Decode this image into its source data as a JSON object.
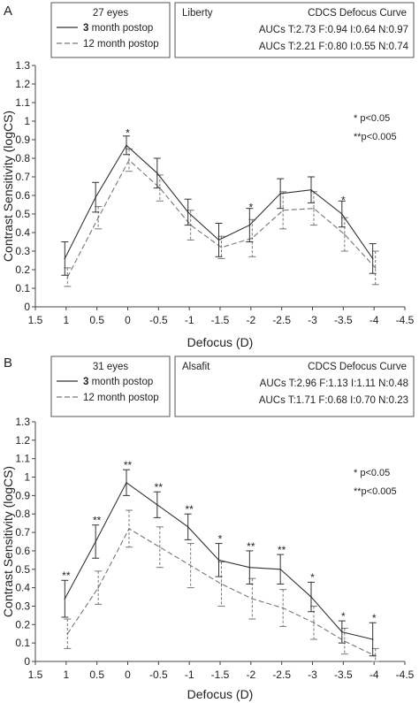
{
  "chart_data": [
    {
      "type": "line",
      "panel_label": "A",
      "xlabel": "Defocus (D)",
      "ylabel": "Contrast Sensitivity (logCS)",
      "x_ticks": [
        "1.5",
        "1",
        "0.5",
        "0",
        "-0.5",
        "-1",
        "-1.5",
        "-2",
        "-2.5",
        "-3",
        "-3.5",
        "-4",
        "-4.5"
      ],
      "x_tick_values": [
        1.5,
        1,
        0.5,
        0,
        -0.5,
        -1,
        -1.5,
        -2,
        -2.5,
        -3,
        -3.5,
        -4,
        -4.5
      ],
      "xlim": [
        1.5,
        -4.5
      ],
      "ylim": [
        0,
        1.3
      ],
      "y_ticks": [
        "0",
        "0.1",
        "0.2",
        "0.3",
        "0.4",
        "0.5",
        "0.6",
        "0.7",
        "0.8",
        "0.9",
        "1",
        "1.1",
        "1.2",
        "1.3"
      ],
      "grid": false,
      "legend_placement": "top-left",
      "legend": {
        "title": "27 eyes",
        "entries": [
          {
            "series_index": 0,
            "label_bold": "3",
            "label_rest": " month postop"
          },
          {
            "series_index": 1,
            "label_bold": "",
            "label_rest": "12 month postop"
          }
        ]
      },
      "info_box": {
        "lens": "Liberty",
        "curve_title": "CDCS Defocus Curve",
        "auc_lines": [
          "AUCs T:2.73 F:0.94 I:0.64 N:0.97",
          "AUCs T:2.21 F:0.80 I:0.55 N:0.74"
        ]
      },
      "significance_notes": [
        "* p<0.05",
        "**p<0.005"
      ],
      "x": [
        1,
        0.5,
        0,
        -0.5,
        -1,
        -1.5,
        -2,
        -2.5,
        -3,
        -3.5,
        -4
      ],
      "series": [
        {
          "line_style": "solid",
          "color": "#333333",
          "values": [
            0.26,
            0.59,
            0.87,
            0.72,
            0.51,
            0.36,
            0.44,
            0.61,
            0.63,
            0.5,
            0.26
          ],
          "error": [
            0.09,
            0.08,
            0.05,
            0.08,
            0.07,
            0.09,
            0.09,
            0.08,
            0.07,
            0.07,
            0.08
          ]
        },
        {
          "line_style": "dashed",
          "color": "#777777",
          "values": [
            0.16,
            0.48,
            0.79,
            0.64,
            0.44,
            0.32,
            0.37,
            0.52,
            0.53,
            0.39,
            0.21
          ],
          "error": [
            0.05,
            0.06,
            0.06,
            0.07,
            0.08,
            0.06,
            0.1,
            0.1,
            0.09,
            0.09,
            0.09
          ]
        }
      ],
      "annotations": [
        {
          "x": 0,
          "y": 0.93,
          "text": "*"
        },
        {
          "x": -2,
          "y": 0.53,
          "text": "*"
        },
        {
          "x": -3.5,
          "y": 0.57,
          "text": "*"
        }
      ]
    },
    {
      "type": "line",
      "panel_label": "B",
      "xlabel": "Defocus (D)",
      "ylabel": "Contrast Sensitivity (logCS)",
      "x_ticks": [
        "1.5",
        "1",
        "0.5",
        "0",
        "-0.5",
        "-1",
        "-1.5",
        "-2",
        "-2.5",
        "-3",
        "-3.5",
        "-4",
        "-4.5"
      ],
      "x_tick_values": [
        1.5,
        1,
        0.5,
        0,
        -0.5,
        -1,
        -1.5,
        -2,
        -2.5,
        -3,
        -3.5,
        -4,
        -4.5
      ],
      "xlim": [
        1.5,
        -4.5
      ],
      "ylim": [
        0,
        1.3
      ],
      "y_ticks": [
        "0",
        "0.1",
        "0.2",
        "0.3",
        "0.4",
        "0.5",
        "0.6",
        "0.7",
        "0.8",
        "0.9",
        "1",
        "1.1",
        "1.2",
        "1.3"
      ],
      "grid": false,
      "legend_placement": "top-left",
      "legend": {
        "title": "31 eyes",
        "entries": [
          {
            "series_index": 0,
            "label_bold": "3",
            "label_rest": " month postop"
          },
          {
            "series_index": 1,
            "label_bold": "",
            "label_rest": "12 month postop"
          }
        ]
      },
      "info_box": {
        "lens": "Alsafit",
        "curve_title": "CDCS Defocus Curve",
        "auc_lines": [
          "AUCs T:2.96 F:1.13 I:1.11 N:0.48",
          "AUCs T:1.71 F:0.68 I:0.70 N:0.23"
        ]
      },
      "significance_notes": [
        "* p<0.05",
        "**p<0.005"
      ],
      "x": [
        1,
        0.5,
        0,
        -0.5,
        -1,
        -1.5,
        -2,
        -2.5,
        -3,
        -3.5,
        -4
      ],
      "series": [
        {
          "line_style": "solid",
          "color": "#333333",
          "values": [
            0.34,
            0.65,
            0.97,
            0.85,
            0.73,
            0.55,
            0.51,
            0.5,
            0.35,
            0.16,
            0.12
          ],
          "error": [
            0.1,
            0.09,
            0.07,
            0.07,
            0.07,
            0.09,
            0.09,
            0.08,
            0.08,
            0.06,
            0.09
          ]
        },
        {
          "line_style": "dashed",
          "color": "#777777",
          "values": [
            0.15,
            0.4,
            0.72,
            0.62,
            0.52,
            0.42,
            0.34,
            0.29,
            0.21,
            0.11,
            0.03
          ],
          "error": [
            0.08,
            0.09,
            0.1,
            0.11,
            0.12,
            0.12,
            0.11,
            0.1,
            0.09,
            0.07,
            0.04
          ]
        }
      ],
      "annotations": [
        {
          "x": 1,
          "y": 0.46,
          "text": "**"
        },
        {
          "x": 0.5,
          "y": 0.76,
          "text": "**"
        },
        {
          "x": 0,
          "y": 1.06,
          "text": "**"
        },
        {
          "x": -0.5,
          "y": 0.94,
          "text": "**"
        },
        {
          "x": -1,
          "y": 0.82,
          "text": "**"
        },
        {
          "x": -1.5,
          "y": 0.66,
          "text": "*"
        },
        {
          "x": -2,
          "y": 0.62,
          "text": "**"
        },
        {
          "x": -2.5,
          "y": 0.6,
          "text": "**"
        },
        {
          "x": -3,
          "y": 0.45,
          "text": "*"
        },
        {
          "x": -3.5,
          "y": 0.24,
          "text": "*"
        },
        {
          "x": -4,
          "y": 0.23,
          "text": "*"
        }
      ]
    }
  ]
}
